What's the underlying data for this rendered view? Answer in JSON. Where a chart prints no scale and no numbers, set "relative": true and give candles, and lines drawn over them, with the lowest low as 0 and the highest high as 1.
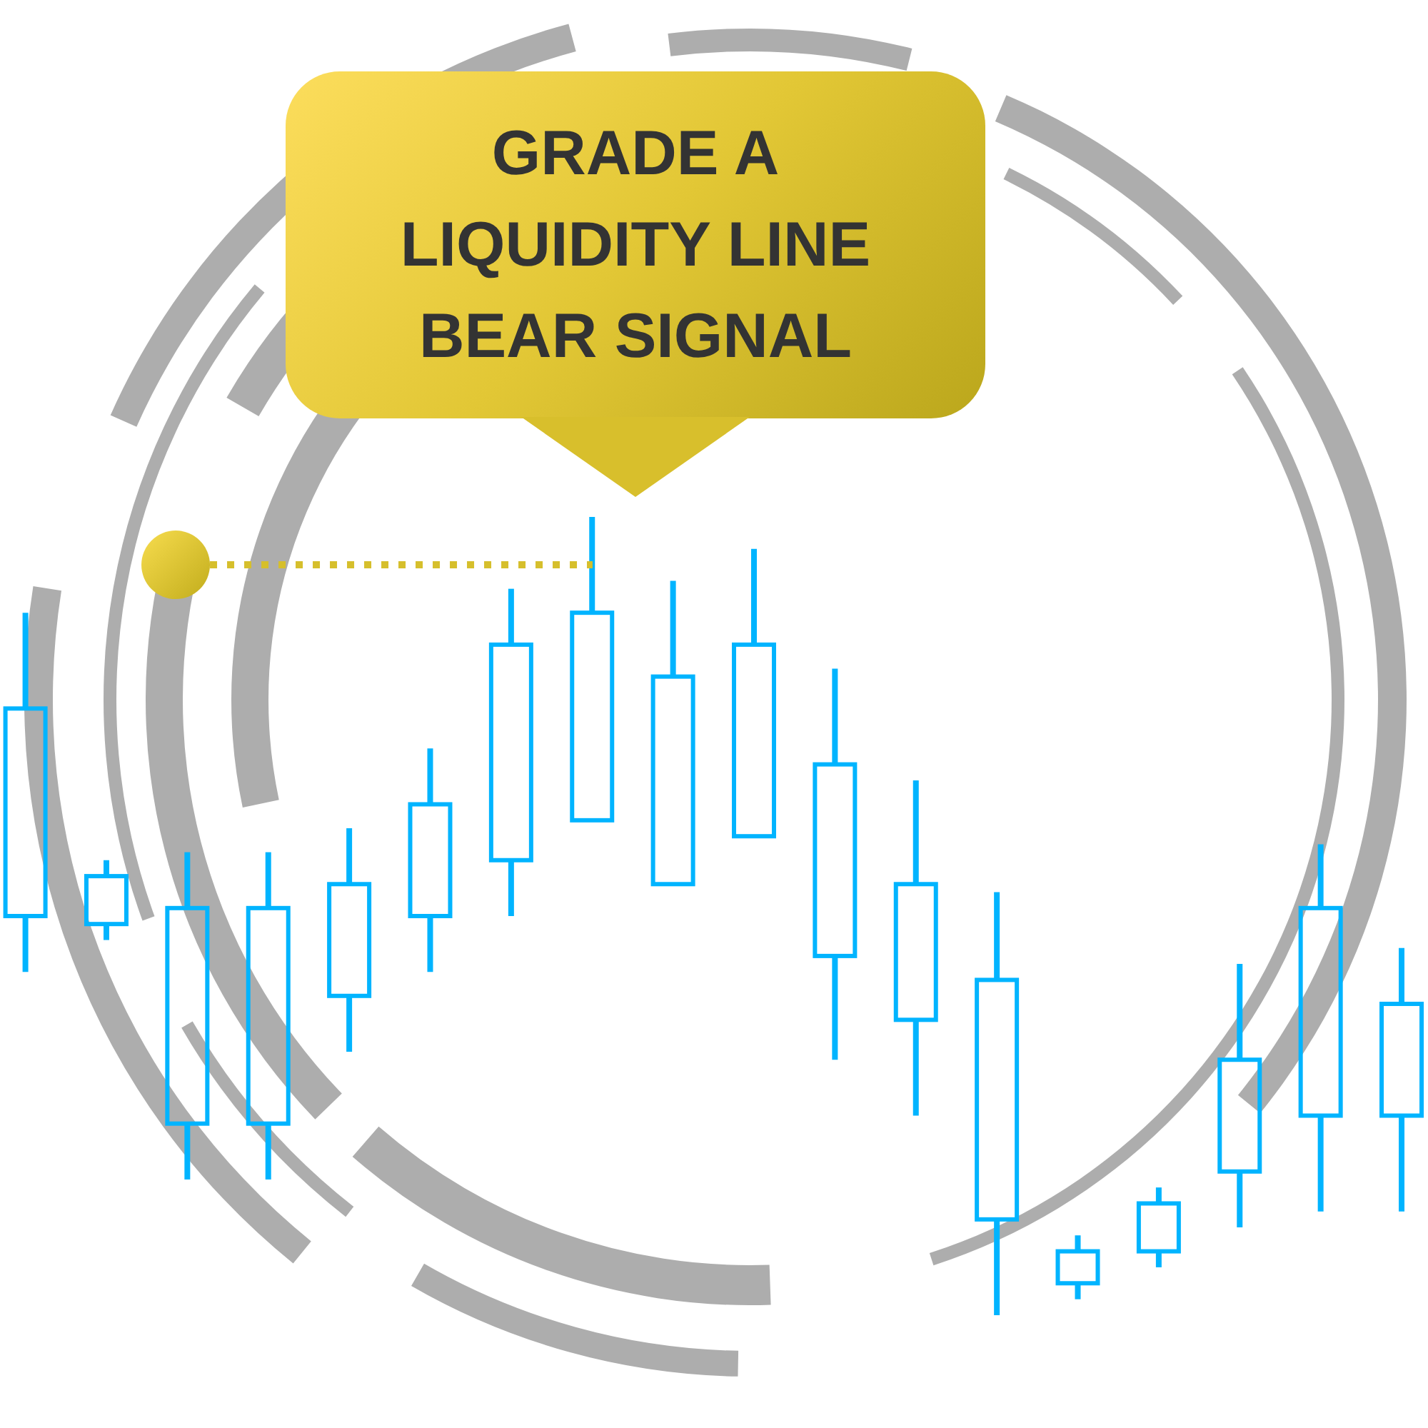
{
  "chart_data": {
    "type": "candlestick",
    "title": "GRADE A LIQUIDITY LINE BEAR SIGNAL",
    "relative": true,
    "tick_labels": false,
    "categories": [
      null,
      null,
      null,
      null,
      null,
      null,
      null,
      null,
      null,
      null,
      null,
      null,
      null,
      null,
      null,
      null,
      null,
      null
    ],
    "color": "#00b4ff",
    "ohlc": [
      [
        0.5,
        0.88,
        0.43,
        0.76
      ],
      [
        0.49,
        0.57,
        0.47,
        0.55
      ],
      [
        0.24,
        0.58,
        0.17,
        0.51
      ],
      [
        0.24,
        0.58,
        0.17,
        0.51
      ],
      [
        0.4,
        0.61,
        0.33,
        0.54
      ],
      [
        0.5,
        0.71,
        0.43,
        0.64
      ],
      [
        0.57,
        0.91,
        0.5,
        0.84
      ],
      [
        0.62,
        1,
        0.62,
        0.88
      ],
      [
        0.54,
        0.92,
        0.54,
        0.8
      ],
      [
        0.6,
        0.96,
        0.6,
        0.84
      ],
      [
        0.45,
        0.81,
        0.32,
        0.69
      ],
      [
        0.37,
        0.67,
        0.25,
        0.54
      ],
      [
        0.12,
        0.53,
        0,
        0.42
      ],
      [
        0.04,
        0.1,
        0.02,
        0.08
      ],
      [
        0.08,
        0.16,
        0.06,
        0.14
      ],
      [
        0.18,
        0.44,
        0.11,
        0.32
      ],
      [
        0.25,
        0.59,
        0.13,
        0.51
      ],
      [
        0.25,
        0.46,
        0.13,
        0.39
      ]
    ],
    "ref_lines": [
      {
        "axis": "y",
        "value": 0.94,
        "color": "#d6bf2c",
        "line_style": "dotted"
      }
    ]
  }
}
